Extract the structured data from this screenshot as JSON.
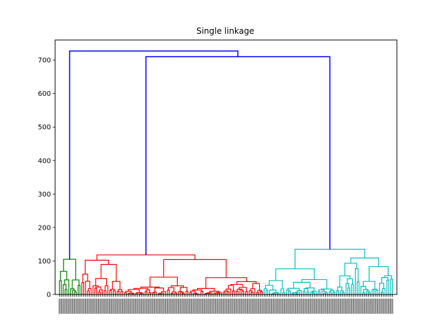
{
  "chart_data": {
    "type": "dendrogram",
    "title": "Single linkage",
    "xlabel": "",
    "ylabel": "",
    "ylim": [
      0,
      760
    ],
    "yticks": [
      0,
      100,
      200,
      300,
      400,
      500,
      600,
      700
    ],
    "ytick_labels": [
      "0",
      "100",
      "200",
      "300",
      "400",
      "500",
      "600",
      "700"
    ],
    "grid": false,
    "clusters": [
      {
        "color": "#008000",
        "leaf_range": [
          0,
          12
        ],
        "top_height": 105
      },
      {
        "color": "#ff0000",
        "leaf_range": [
          12,
          110
        ],
        "top_height": 118
      },
      {
        "color": "#00bfbf",
        "leaf_range": [
          110,
          180
        ],
        "top_height": 135
      }
    ],
    "top_links": [
      {
        "color": "#0000ff",
        "left_child_height": 118,
        "right_child_height": 135,
        "height": 710
      },
      {
        "color": "#0000ff",
        "left_child_height": 105,
        "right_child_height": 710,
        "height": 727
      }
    ],
    "leaf_count": 180
  }
}
